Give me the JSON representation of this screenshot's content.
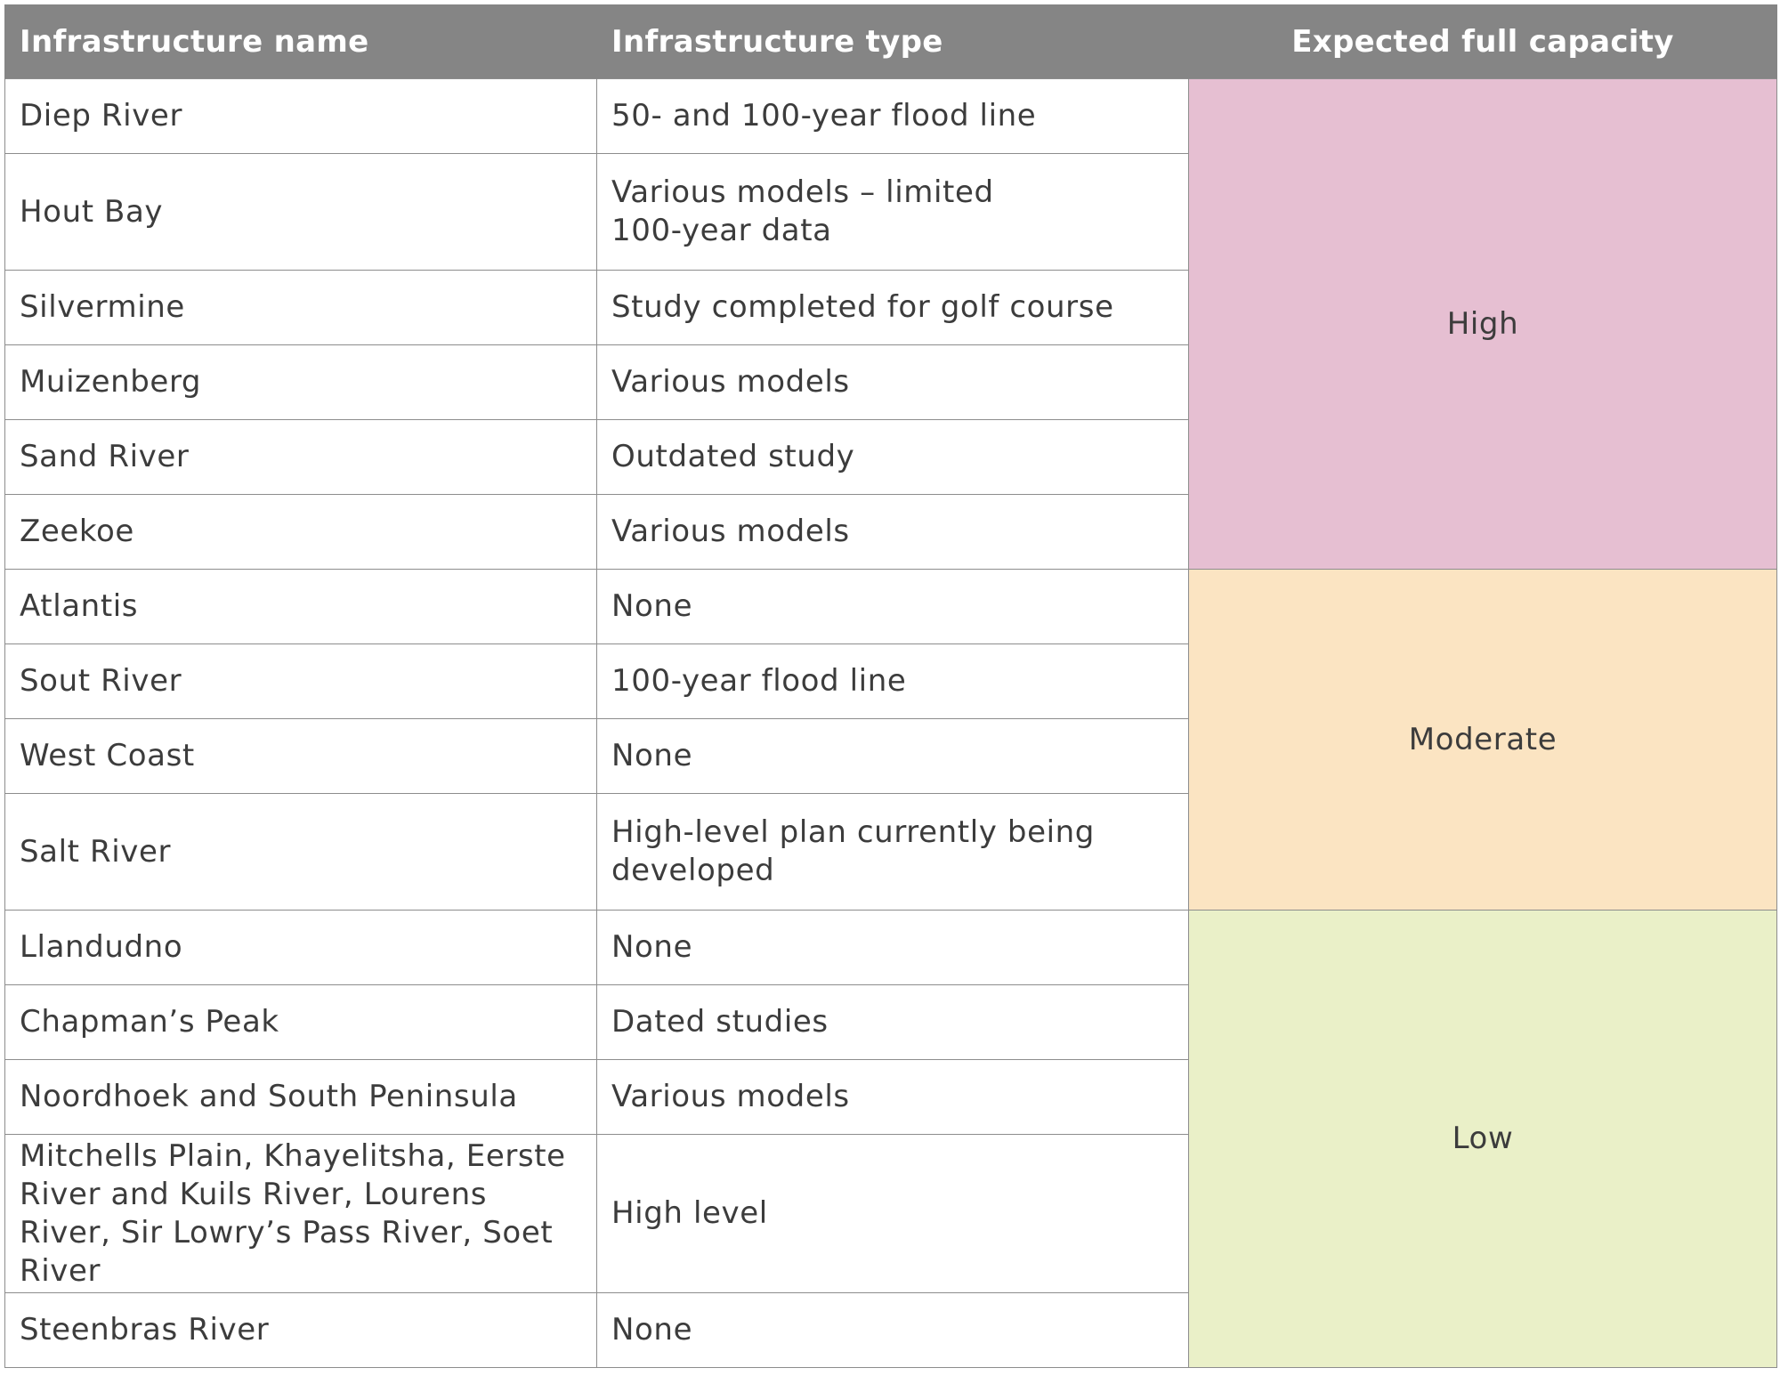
{
  "table": {
    "headers": {
      "name": "Infrastructure name",
      "type": "Infrastructure type",
      "capacity": "Expected full capacity"
    },
    "rows": [
      {
        "name": "Diep River",
        "type": "50- and 100-year flood line"
      },
      {
        "name": "Hout Bay",
        "type": "Various models – limited 100-year data"
      },
      {
        "name": "Silvermine",
        "type": "Study completed for golf course"
      },
      {
        "name": "Muizenberg",
        "type": "Various models"
      },
      {
        "name": "Sand River",
        "type": "Outdated study"
      },
      {
        "name": "Zeekoe",
        "type": "Various models"
      },
      {
        "name": "Atlantis",
        "type": "None"
      },
      {
        "name": "Sout River",
        "type": "100-year flood line"
      },
      {
        "name": "West Coast",
        "type": "None"
      },
      {
        "name": "Salt River",
        "type": "High-level plan currently being developed"
      },
      {
        "name": "Llandudno",
        "type": "None"
      },
      {
        "name": "Chapman’s Peak",
        "type": "Dated studies"
      },
      {
        "name": "Noordhoek and South Peninsula",
        "type": "Various models"
      },
      {
        "name": "Mitchells Plain, Khayelitsha, Eerste River and Kuils River, Lourens River, Sir Lowry’s Pass River, Soet River",
        "type": "High level"
      },
      {
        "name": "Steenbras River",
        "type": "None"
      }
    ],
    "capacity_groups": [
      {
        "label": "High",
        "color": "#e6bfd2"
      },
      {
        "label": "Moderate",
        "color": "#fbe4c2"
      },
      {
        "label": "Low",
        "color": "#eaf0c8"
      }
    ]
  },
  "colors": {
    "header_bg": "#858585",
    "header_text": "#ffffff",
    "border": "#8d8d8d"
  }
}
